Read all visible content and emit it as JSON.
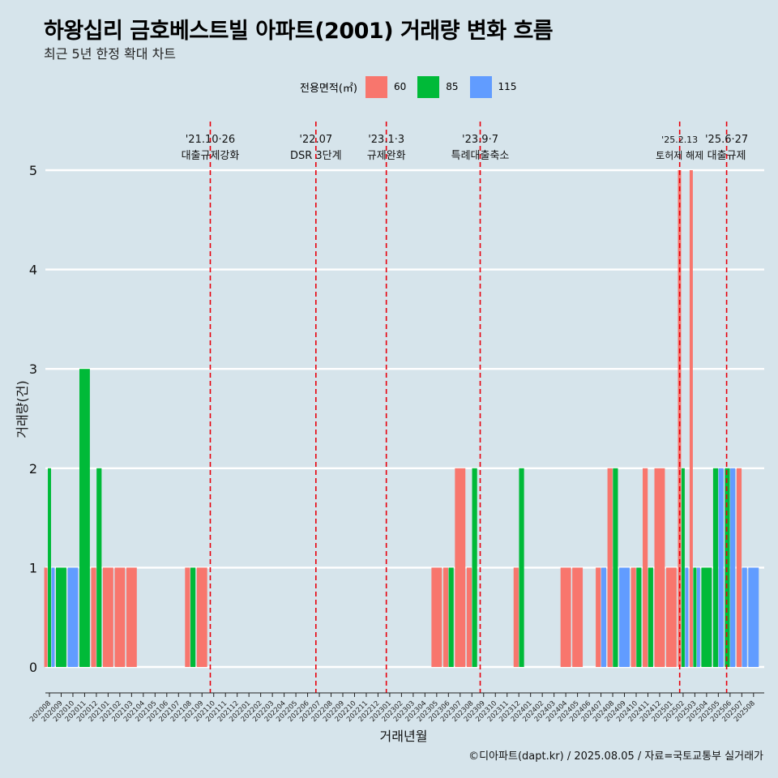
{
  "title": "하왕십리 금호베스트빌 아파트(2001) 거래량 변화 흐름",
  "subtitle": "최근 5년 한정 확대 차트",
  "caption": "©디아파트(dapt.kr) / 2025.08.05 / 자료=국토교통부 실거래가",
  "legend": {
    "title": "전용면적(㎡)",
    "items": [
      {
        "label": "60",
        "color": "#f8766d"
      },
      {
        "label": "85",
        "color": "#00ba38"
      },
      {
        "label": "115",
        "color": "#619cff"
      }
    ]
  },
  "chart_data": {
    "type": "bar",
    "xlabel": "거래년월",
    "ylabel": "거래량(건)",
    "ylim": [
      0,
      5
    ],
    "yticks": [
      0,
      1,
      2,
      3,
      4,
      5
    ],
    "grid": true,
    "months": [
      "202008",
      "202009",
      "202010",
      "202011",
      "202012",
      "202101",
      "202102",
      "202103",
      "202104",
      "202105",
      "202106",
      "202107",
      "202108",
      "202109",
      "202110",
      "202111",
      "202112",
      "202201",
      "202202",
      "202203",
      "202204",
      "202205",
      "202206",
      "202207",
      "202208",
      "202209",
      "202210",
      "202211",
      "202212",
      "202301",
      "202302",
      "202303",
      "202304",
      "202305",
      "202306",
      "202307",
      "202308",
      "202309",
      "202310",
      "202311",
      "202312",
      "202401",
      "202402",
      "202403",
      "202404",
      "202405",
      "202406",
      "202407",
      "202408",
      "202409",
      "202410",
      "202411",
      "202412",
      "202501",
      "202502",
      "202503",
      "202504",
      "202505",
      "202506",
      "202507",
      "202508"
    ],
    "series": [
      {
        "name": "60",
        "color": "#f8766d",
        "values": [
          1,
          0,
          0,
          0,
          1,
          1,
          1,
          1,
          0,
          0,
          0,
          0,
          1,
          1,
          0,
          0,
          0,
          0,
          0,
          0,
          0,
          0,
          0,
          0,
          0,
          0,
          0,
          0,
          0,
          0,
          0,
          0,
          0,
          1,
          1,
          2,
          1,
          0,
          0,
          0,
          1,
          0,
          0,
          0,
          1,
          1,
          0,
          1,
          2,
          0,
          1,
          2,
          2,
          1,
          5,
          5,
          0,
          0,
          0,
          2,
          0
        ]
      },
      {
        "name": "85",
        "color": "#00ba38",
        "values": [
          2,
          1,
          0,
          3,
          2,
          0,
          0,
          0,
          0,
          0,
          0,
          0,
          1,
          0,
          0,
          0,
          0,
          0,
          0,
          0,
          0,
          0,
          0,
          0,
          0,
          0,
          0,
          0,
          0,
          0,
          0,
          0,
          0,
          0,
          1,
          0,
          2,
          0,
          0,
          0,
          2,
          0,
          0,
          0,
          0,
          0,
          0,
          0,
          2,
          0,
          1,
          1,
          0,
          0,
          2,
          1,
          1,
          2,
          2,
          0,
          0
        ]
      },
      {
        "name": "115",
        "color": "#619cff",
        "values": [
          1,
          0,
          1,
          0,
          0,
          0,
          0,
          0,
          0,
          0,
          0,
          0,
          0,
          0,
          0,
          0,
          0,
          0,
          0,
          0,
          0,
          0,
          0,
          0,
          0,
          0,
          0,
          0,
          0,
          0,
          0,
          0,
          0,
          0,
          0,
          0,
          0,
          0,
          0,
          0,
          0,
          0,
          0,
          0,
          0,
          0,
          0,
          1,
          0,
          1,
          0,
          0,
          0,
          0,
          1,
          1,
          0,
          2,
          2,
          1,
          1
        ]
      }
    ],
    "events": [
      {
        "month": "202110",
        "date": "'21.10·26",
        "label": "대출규제강화"
      },
      {
        "month": "202207",
        "date": "'22.07",
        "label": "DSR 3단계"
      },
      {
        "month": "202301",
        "date": "'23.1·3",
        "label": "규제완화"
      },
      {
        "month": "202309",
        "date": "'23.9·7",
        "label": "특례대출축소"
      },
      {
        "month": "202502",
        "date": "'25.2.13",
        "label": "토허제 해제"
      },
      {
        "month": "202506",
        "date": "'25.6·27",
        "label": "대출규제"
      }
    ]
  }
}
